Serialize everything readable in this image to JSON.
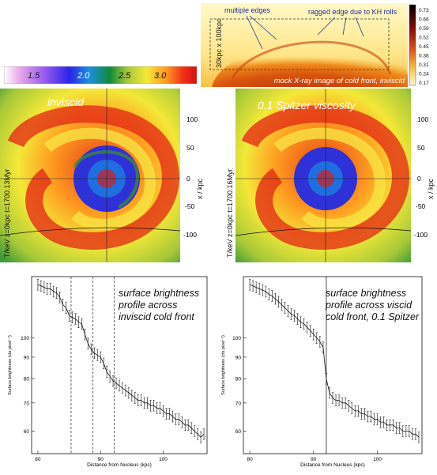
{
  "colorbar_temp": {
    "tick_labels": [
      "1.5",
      "2.0",
      "2.5",
      "3.0"
    ],
    "stops": [
      "#ffffff",
      "#e9a9e9",
      "#a060f0",
      "#2a24e8",
      "#1a8fe0",
      "#108a3a",
      "#a6c838",
      "#f4e838",
      "#ff9a20",
      "#f03018",
      "#d41010"
    ]
  },
  "xray_panel": {
    "caption": "mock X-ray image of cold front, inviscid",
    "box_label": "30kpc x 100kpc",
    "annotation_multiple_edges": "multiple edges",
    "annotation_ragged_edge": "ragged edge due to KH rolls",
    "colorbar_ticks": [
      "0.73",
      "0.66",
      "0.59",
      "0.52",
      "0.45",
      "0.38",
      "0.31",
      "0.24",
      "0.17"
    ]
  },
  "temp_maps": [
    {
      "title": "inviscid",
      "side_label": "T/keV  z=0kpc  t=1700.13Myr",
      "axis_label": "x / kpc",
      "ticks": [
        "100",
        "50",
        "0",
        "-50",
        "-100"
      ]
    },
    {
      "title": "0.1 Spitzer viscosity",
      "side_label": "T/keV  z=0kpc  t=1700.16Myr",
      "axis_label": "x / kpc",
      "ticks": [
        "100",
        "50",
        "0",
        "-50",
        "-100"
      ]
    }
  ],
  "chart_data": [
    {
      "type": "line",
      "annotation": "surface brightness profile across inviscid cold front",
      "xlabel": "Distance from Nucleus (kpc)",
      "ylabel": "Surface brightness (cts pixel⁻¹)",
      "x_ticks": [
        "80",
        "90",
        "100"
      ],
      "y_ticks": [
        "100",
        "90",
        "80",
        "70",
        "60"
      ],
      "xlim": [
        79,
        107
      ],
      "ylim": [
        53,
        140
      ],
      "dashed_lines_x": [
        85.3,
        88.8,
        92.2
      ],
      "x": [
        80,
        80.5,
        81,
        81.5,
        82,
        82.5,
        83,
        83.5,
        84,
        84.5,
        85,
        85.5,
        86,
        86.5,
        87,
        87.5,
        88,
        88.5,
        89,
        89.5,
        90,
        90.5,
        91,
        91.5,
        92,
        92.5,
        93,
        93.5,
        94,
        94.5,
        95,
        95.5,
        96,
        96.5,
        97,
        97.5,
        98,
        98.5,
        99,
        99.5,
        100,
        100.5,
        101,
        101.5,
        102,
        102.5,
        103,
        103.5,
        104,
        104.5,
        105,
        105.5,
        106,
        106.5
      ],
      "y": [
        134,
        133,
        132,
        131,
        131,
        129,
        128,
        125,
        120,
        118,
        113,
        112,
        111,
        109,
        108,
        102,
        97,
        94,
        92,
        91,
        90,
        87,
        83,
        81,
        79,
        78,
        77,
        76,
        75,
        74,
        73,
        72,
        71,
        71,
        70,
        70,
        69,
        69,
        68,
        68,
        67,
        66,
        66,
        65,
        64,
        64,
        63,
        62,
        62,
        61,
        60,
        59,
        58,
        59
      ]
    },
    {
      "type": "line",
      "annotation": "surface brightness profile across viscid cold front, 0.1 Spitzer",
      "xlabel": "Distance from Nucleus (kpc)",
      "ylabel": "Surface brightness (cts pixel⁻¹)",
      "x_ticks": [
        "80",
        "90",
        "100"
      ],
      "y_ticks": [
        "100",
        "90",
        "80",
        "70",
        "60"
      ],
      "xlim": [
        79,
        107
      ],
      "ylim": [
        53,
        140
      ],
      "solid_line_x": [
        92
      ],
      "x": [
        80,
        80.5,
        81,
        81.5,
        82,
        82.5,
        83,
        83.5,
        84,
        84.5,
        85,
        85.5,
        86,
        86.5,
        87,
        87.5,
        88,
        88.5,
        89,
        89.5,
        90,
        90.5,
        91,
        91.5,
        92,
        92.5,
        93,
        93.5,
        94,
        94.5,
        95,
        95.5,
        96,
        96.5,
        97,
        97.5,
        98,
        98.5,
        99,
        99.5,
        100,
        100.5,
        101,
        101.5,
        102,
        102.5,
        103,
        103.5,
        104,
        104.5,
        105,
        105.5,
        106,
        106.5
      ],
      "y": [
        134,
        133,
        132,
        131,
        130,
        129,
        127,
        126,
        124,
        122,
        120,
        118,
        116,
        114,
        113,
        111,
        109,
        108,
        106,
        104,
        102,
        100,
        98,
        95,
        80,
        74,
        72,
        71,
        71,
        70,
        70,
        69,
        68,
        67,
        67,
        66,
        66,
        65,
        65,
        64,
        64,
        63,
        63,
        62,
        62,
        62,
        61,
        61,
        60,
        60,
        60,
        59,
        59,
        58
      ]
    }
  ]
}
